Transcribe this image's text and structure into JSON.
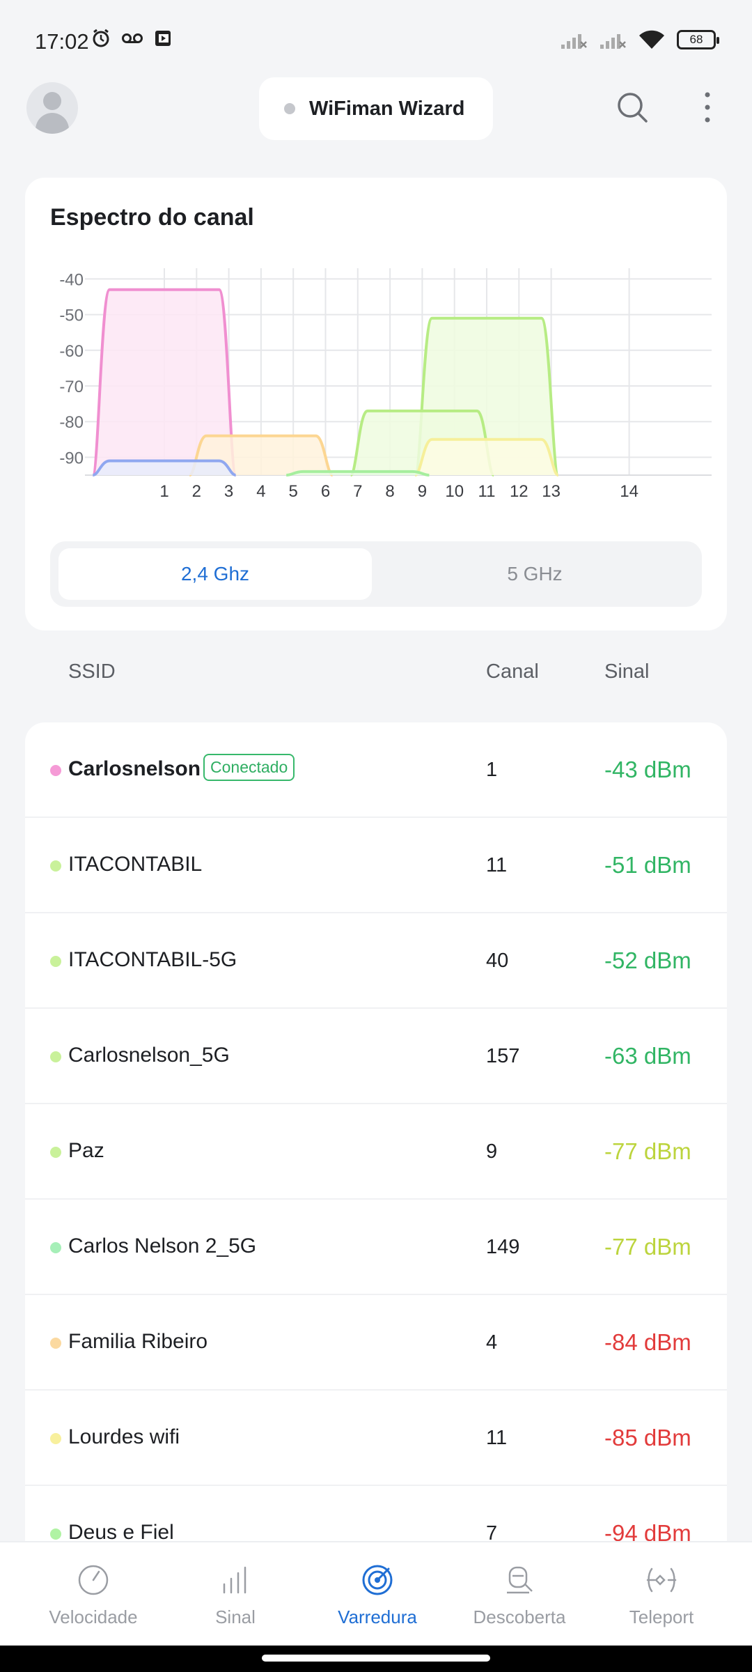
{
  "status_bar": {
    "time": "17:02",
    "battery": "68"
  },
  "header": {
    "wizard_label": "WiFiman Wizard"
  },
  "spectrum": {
    "title": "Espectro do canal",
    "bands": [
      "2,4 Ghz",
      "5 GHz"
    ],
    "active_band": "2,4 Ghz"
  },
  "chart_data": {
    "type": "area",
    "title": "Espectro do canal",
    "xlabel": "",
    "ylabel": "",
    "x_ticks": [
      "1",
      "2",
      "3",
      "4",
      "5",
      "6",
      "7",
      "8",
      "9",
      "10",
      "11",
      "12",
      "13",
      "14"
    ],
    "y_ticks": [
      "-40",
      "-50",
      "-60",
      "-70",
      "-80",
      "-90"
    ],
    "ylim": [
      -95,
      -37
    ],
    "grid": true,
    "series": [
      {
        "channel": 1,
        "signal": -43,
        "color": "#f08fd0",
        "fill": "#fde6f5"
      },
      {
        "channel": 11,
        "signal": -51,
        "color": "#b7ec84",
        "fill": "#eefbdf"
      },
      {
        "channel": 9,
        "signal": -77,
        "color": "#b7ec84",
        "fill": "#eefbdf"
      },
      {
        "channel": 4,
        "signal": -84,
        "color": "#fcd692",
        "fill": "#fff2dc"
      },
      {
        "channel": 11,
        "signal": -85,
        "color": "#f6ef9a",
        "fill": "#fdfbe3"
      },
      {
        "channel": 7,
        "signal": -94,
        "color": "#a6ee9e",
        "fill": "#e6fbe2"
      },
      {
        "channel": 1,
        "signal": -91,
        "color": "#8fa7f0",
        "fill": "#e7ecfc"
      }
    ]
  },
  "list_header": {
    "ssid": "SSID",
    "channel": "Canal",
    "signal": "Sinal"
  },
  "networks": [
    {
      "ssid": "Carlosnelson",
      "badge": "Conectado",
      "channel": "1",
      "signal": "-43 dBm",
      "dot": "#f59ad6",
      "signal_color": "#31b564"
    },
    {
      "ssid": "ITACONTABIL",
      "channel": "11",
      "signal": "-51 dBm",
      "dot": "#c9f19a",
      "signal_color": "#31b564"
    },
    {
      "ssid": "ITACONTABIL-5G",
      "channel": "40",
      "signal": "-52 dBm",
      "dot": "#c9f19a",
      "signal_color": "#31b564"
    },
    {
      "ssid": "Carlosnelson_5G",
      "channel": "157",
      "signal": "-63 dBm",
      "dot": "#c9f19a",
      "signal_color": "#31b564"
    },
    {
      "ssid": "Paz",
      "channel": "9",
      "signal": "-77 dBm",
      "dot": "#c9f19a",
      "signal_color": "#bcd43d"
    },
    {
      "ssid": "Carlos Nelson 2_5G",
      "channel": "149",
      "signal": "-77 dBm",
      "dot": "#a6efb8",
      "signal_color": "#bcd43d"
    },
    {
      "ssid": "Familia Ribeiro",
      "channel": "4",
      "signal": "-84 dBm",
      "dot": "#fbd9a0",
      "signal_color": "#e23b3b"
    },
    {
      "ssid": "Lourdes wifi",
      "channel": "11",
      "signal": "-85 dBm",
      "dot": "#f8f09d",
      "signal_color": "#e23b3b"
    },
    {
      "ssid": "Deus e Fiel",
      "channel": "7",
      "signal": "-94 dBm",
      "dot": "#b0f3a3",
      "signal_color": "#e23b3b"
    }
  ],
  "bottom_nav": [
    {
      "label": "Velocidade",
      "icon": "speedometer-icon"
    },
    {
      "label": "Sinal",
      "icon": "signal-bars-icon"
    },
    {
      "label": "Varredura",
      "icon": "radar-icon",
      "active": true
    },
    {
      "label": "Descoberta",
      "icon": "discovery-icon"
    },
    {
      "label": "Teleport",
      "icon": "teleport-icon"
    }
  ]
}
